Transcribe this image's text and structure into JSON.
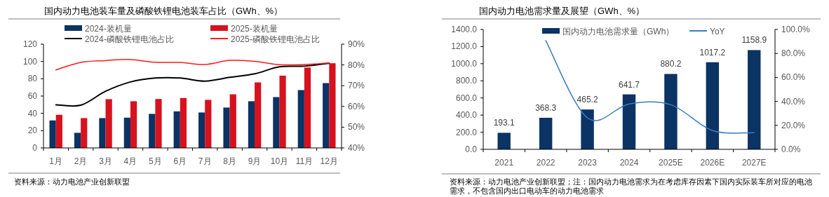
{
  "chart_data": [
    {
      "type": "bar",
      "title": "国内动力电池装车量及磷酸铁锂电池装车占比（GWh、%）",
      "categories": [
        "1月",
        "2月",
        "3月",
        "4月",
        "5月",
        "6月",
        "7月",
        "8月",
        "9月",
        "10月",
        "11月",
        "12月"
      ],
      "series": [
        {
          "name": "2024-装机量",
          "color": "#0b3364",
          "values": [
            31.8,
            17.5,
            34.5,
            35,
            39.4,
            42.3,
            41,
            46.7,
            54,
            58.8,
            66.9,
            75
          ]
        },
        {
          "name": "2025-装机量",
          "color": "#d7111d",
          "values": [
            38.3,
            34.5,
            56.4,
            54,
            56.6,
            57.7,
            55.6,
            62,
            75.8,
            83.6,
            93,
            97.9
          ]
        },
        {
          "name": "2024-磷酸铁锂电池占比",
          "type": "line",
          "axis": "y2",
          "color": "#000000",
          "values": [
            60.8,
            60.6,
            67.3,
            71.8,
            73.7,
            73.7,
            72.2,
            74,
            75.7,
            79.1,
            79.4,
            80.8
          ]
        },
        {
          "name": "2025-磷酸铁锂电池占比",
          "type": "line",
          "axis": "y2",
          "color": "#ff1a1a",
          "values": [
            77.6,
            81.2,
            82.1,
            82.6,
            81.3,
            81.2,
            80.2,
            82.2,
            81.7,
            80.1,
            80.2,
            81
          ]
        }
      ],
      "ylim": [
        0,
        120
      ],
      "yticks": [
        0,
        20,
        40,
        60,
        80,
        100,
        120
      ],
      "y2lim": [
        40,
        90
      ],
      "y2ticks": [
        {
          "value": 40,
          "label": "40%"
        },
        {
          "value": 50,
          "label": "50%"
        },
        {
          "value": 60,
          "label": "60%"
        },
        {
          "value": 70,
          "label": "70%"
        },
        {
          "value": 80,
          "label": "80%"
        },
        {
          "value": 90,
          "label": "90%"
        }
      ],
      "legend": "top",
      "annotations": [
        "资料来源：动力电池产业创新联盟"
      ]
    },
    {
      "type": "bar",
      "title": "国内动力电池需求量及展望（GWh、%）",
      "categories": [
        "2021",
        "2022",
        "2023",
        "2024",
        "2025E",
        "2026E",
        "2027E"
      ],
      "series": [
        {
          "name": "国内动力电池需求量（GWh）",
          "color": "#0b3364",
          "values": [
            193.1,
            368.3,
            465.2,
            641.7,
            880.2,
            1017.2,
            1158.9
          ],
          "value_labels": [
            "193.1",
            "368.3",
            "465.2",
            "641.7",
            "880.2",
            "1017.2",
            "1158.9"
          ]
        },
        {
          "name": "YoY",
          "type": "line",
          "axis": "y2",
          "color": "#3a7cc4",
          "values": [
            null,
            90.7,
            26.3,
            37.9,
            37.2,
            15.6,
            13.9
          ]
        }
      ],
      "ylim": [
        0,
        1400
      ],
      "yticks": [
        {
          "value": 0,
          "label": "0.0"
        },
        {
          "value": 200,
          "label": "200.0"
        },
        {
          "value": 400,
          "label": "400.0"
        },
        {
          "value": 600,
          "label": "600.0"
        },
        {
          "value": 800,
          "label": "800.0"
        },
        {
          "value": 1000,
          "label": "1000.0"
        },
        {
          "value": 1200,
          "label": "1200.0"
        },
        {
          "value": 1400,
          "label": "1400.0"
        }
      ],
      "y2lim": [
        0,
        100
      ],
      "y2ticks": [
        {
          "value": 0,
          "label": "0.0%"
        },
        {
          "value": 20,
          "label": "20.0%"
        },
        {
          "value": 40,
          "label": "40.0%"
        },
        {
          "value": 60,
          "label": "60.0%"
        },
        {
          "value": 80,
          "label": "80.0%"
        },
        {
          "value": 100,
          "label": "100.0%"
        }
      ],
      "legend": "top",
      "annotations": [
        "资料来源：动力电池产业创新联盟；注：国内动力电池需求为在考虑库存因素下国内实际装车所对应的电池需求，不包含国内出口电动车的动力电池需求"
      ]
    }
  ]
}
